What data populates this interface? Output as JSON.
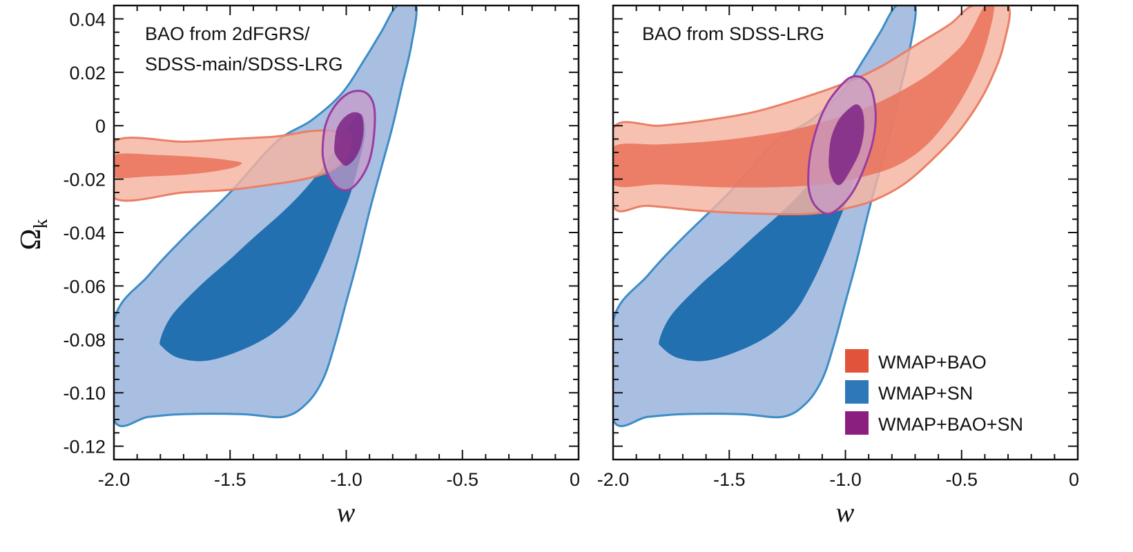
{
  "chart_data": [
    {
      "type": "contour",
      "panel": "left",
      "annotation": [
        "BAO from 2dFGRS/",
        "SDSS-main/SDSS-LRG"
      ],
      "xlabel": "w",
      "ylabel": "Ω",
      "ylabel_subscript": "k",
      "xlim": [
        -2.0,
        0
      ],
      "ylim": [
        -0.125,
        0.045
      ],
      "x_ticks": [
        "-2.0",
        "-1.5",
        "-1.0",
        "-0.5",
        "0"
      ],
      "y_ticks": [
        "0.04",
        "0.02",
        "0",
        "-0.02",
        "-0.04",
        "-0.06",
        "-0.08",
        "-0.10",
        "-0.12"
      ],
      "y_tick_values": [
        0.04,
        0.02,
        0,
        -0.02,
        -0.04,
        -0.06,
        -0.08,
        -0.1,
        -0.12
      ],
      "x_tick_values": [
        -2.0,
        -1.5,
        -1.0,
        -0.5,
        0
      ],
      "regions": [
        {
          "name": "WMAP+SN 95%",
          "series": "WMAP+SN",
          "level": "outer",
          "points": [
            [
              -2.0,
              -0.073
            ],
            [
              -1.85,
              -0.056
            ],
            [
              -1.7,
              -0.042
            ],
            [
              -1.5,
              -0.025
            ],
            [
              -1.3,
              -0.006
            ],
            [
              -1.15,
              0.002
            ],
            [
              -1.02,
              0.012
            ],
            [
              -0.92,
              0.025
            ],
            [
              -0.85,
              0.035
            ],
            [
              -0.78,
              0.045
            ],
            [
              -0.7,
              0.045
            ],
            [
              -0.72,
              0.03
            ],
            [
              -0.76,
              0.015
            ],
            [
              -0.8,
              0.0
            ],
            [
              -0.85,
              -0.016
            ],
            [
              -0.9,
              -0.032
            ],
            [
              -0.95,
              -0.05
            ],
            [
              -1.0,
              -0.066
            ],
            [
              -1.05,
              -0.082
            ],
            [
              -1.1,
              -0.095
            ],
            [
              -1.17,
              -0.104
            ],
            [
              -1.27,
              -0.109
            ],
            [
              -1.45,
              -0.108
            ],
            [
              -1.7,
              -0.108
            ],
            [
              -1.85,
              -0.109
            ],
            [
              -2.0,
              -0.11
            ]
          ]
        },
        {
          "name": "WMAP+SN 68%",
          "series": "WMAP+SN",
          "level": "inner",
          "points": [
            [
              -1.8,
              -0.08
            ],
            [
              -1.75,
              -0.071
            ],
            [
              -1.63,
              -0.06
            ],
            [
              -1.5,
              -0.05
            ],
            [
              -1.4,
              -0.042
            ],
            [
              -1.27,
              -0.032
            ],
            [
              -1.17,
              -0.023
            ],
            [
              -1.08,
              -0.013
            ],
            [
              -1.01,
              -0.003
            ],
            [
              -0.96,
              0.003
            ],
            [
              -0.93,
              0.004
            ],
            [
              -0.92,
              -0.003
            ],
            [
              -0.94,
              -0.012
            ],
            [
              -0.98,
              -0.025
            ],
            [
              -1.03,
              -0.036
            ],
            [
              -1.09,
              -0.049
            ],
            [
              -1.15,
              -0.06
            ],
            [
              -1.22,
              -0.07
            ],
            [
              -1.32,
              -0.078
            ],
            [
              -1.45,
              -0.084
            ],
            [
              -1.6,
              -0.088
            ],
            [
              -1.72,
              -0.087
            ],
            [
              -1.79,
              -0.083
            ]
          ]
        },
        {
          "name": "WMAP+BAO 95%",
          "series": "WMAP+BAO",
          "level": "outer",
          "points": [
            [
              -2.0,
              -0.006
            ],
            [
              -1.7,
              -0.006
            ],
            [
              -1.5,
              -0.005
            ],
            [
              -1.3,
              -0.004
            ],
            [
              -1.15,
              -0.002
            ],
            [
              -1.05,
              -0.002
            ],
            [
              -0.98,
              -0.004
            ],
            [
              -1.0,
              -0.012
            ],
            [
              -1.07,
              -0.017
            ],
            [
              -1.18,
              -0.02
            ],
            [
              -1.32,
              -0.022
            ],
            [
              -1.5,
              -0.024
            ],
            [
              -1.7,
              -0.025
            ],
            [
              -2.0,
              -0.027
            ]
          ]
        },
        {
          "name": "WMAP+BAO 68%",
          "series": "WMAP+BAO",
          "level": "inner",
          "points": [
            [
              -2.0,
              -0.011
            ],
            [
              -1.8,
              -0.011
            ],
            [
              -1.6,
              -0.012
            ],
            [
              -1.5,
              -0.013
            ],
            [
              -1.45,
              -0.014
            ],
            [
              -1.5,
              -0.016
            ],
            [
              -1.65,
              -0.018
            ],
            [
              -1.85,
              -0.019
            ],
            [
              -2.0,
              -0.019
            ]
          ]
        },
        {
          "name": "WMAP+BAO+SN 95%",
          "series": "WMAP+BAO+SN",
          "level": "outer",
          "points": [
            [
              -1.1,
              -0.006
            ],
            [
              -1.09,
              0.0
            ],
            [
              -1.06,
              0.006
            ],
            [
              -1.01,
              0.011
            ],
            [
              -0.96,
              0.013
            ],
            [
              -0.91,
              0.012
            ],
            [
              -0.88,
              0.007
            ],
            [
              -0.88,
              -0.003
            ],
            [
              -0.9,
              -0.013
            ],
            [
              -0.94,
              -0.02
            ],
            [
              -0.99,
              -0.024
            ],
            [
              -1.04,
              -0.023
            ],
            [
              -1.08,
              -0.018
            ],
            [
              -1.1,
              -0.012
            ]
          ]
        },
        {
          "name": "WMAP+BAO+SN 68%",
          "series": "WMAP+BAO+SN",
          "level": "inner",
          "points": [
            [
              -1.05,
              -0.006
            ],
            [
              -1.04,
              -0.001
            ],
            [
              -1.01,
              0.003
            ],
            [
              -0.97,
              0.005
            ],
            [
              -0.935,
              0.004
            ],
            [
              -0.925,
              -0.001
            ],
            [
              -0.935,
              -0.007
            ],
            [
              -0.96,
              -0.012
            ],
            [
              -1.0,
              -0.015
            ],
            [
              -1.03,
              -0.013
            ],
            [
              -1.05,
              -0.01
            ]
          ]
        }
      ]
    },
    {
      "type": "contour",
      "panel": "right",
      "annotation": [
        "BAO from SDSS-LRG"
      ],
      "xlabel": "w",
      "xlim": [
        -2.0,
        0
      ],
      "ylim": [
        -0.125,
        0.045
      ],
      "x_ticks": [
        "-2.0",
        "-1.5",
        "-1.0",
        "-0.5",
        "0"
      ],
      "x_tick_values": [
        -2.0,
        -1.5,
        -1.0,
        -0.5,
        0
      ],
      "y_tick_values": [
        0.04,
        0.02,
        0,
        -0.02,
        -0.04,
        -0.06,
        -0.08,
        -0.1,
        -0.12
      ],
      "regions": [
        {
          "name": "WMAP+SN 95%",
          "series": "WMAP+SN",
          "level": "outer",
          "points": [
            [
              -2.0,
              -0.073
            ],
            [
              -1.85,
              -0.056
            ],
            [
              -1.7,
              -0.042
            ],
            [
              -1.5,
              -0.025
            ],
            [
              -1.3,
              -0.006
            ],
            [
              -1.15,
              0.002
            ],
            [
              -1.02,
              0.012
            ],
            [
              -0.92,
              0.025
            ],
            [
              -0.85,
              0.035
            ],
            [
              -0.78,
              0.045
            ],
            [
              -0.7,
              0.045
            ],
            [
              -0.72,
              0.03
            ],
            [
              -0.76,
              0.015
            ],
            [
              -0.8,
              0.0
            ],
            [
              -0.85,
              -0.016
            ],
            [
              -0.9,
              -0.032
            ],
            [
              -0.95,
              -0.05
            ],
            [
              -1.0,
              -0.066
            ],
            [
              -1.05,
              -0.082
            ],
            [
              -1.1,
              -0.095
            ],
            [
              -1.17,
              -0.104
            ],
            [
              -1.27,
              -0.109
            ],
            [
              -1.45,
              -0.108
            ],
            [
              -1.7,
              -0.108
            ],
            [
              -1.85,
              -0.109
            ],
            [
              -2.0,
              -0.11
            ]
          ]
        },
        {
          "name": "WMAP+SN 68%",
          "series": "WMAP+SN",
          "level": "inner",
          "points": [
            [
              -1.8,
              -0.08
            ],
            [
              -1.75,
              -0.071
            ],
            [
              -1.63,
              -0.06
            ],
            [
              -1.5,
              -0.05
            ],
            [
              -1.4,
              -0.042
            ],
            [
              -1.27,
              -0.032
            ],
            [
              -1.17,
              -0.023
            ],
            [
              -1.08,
              -0.013
            ],
            [
              -1.01,
              -0.003
            ],
            [
              -0.96,
              0.003
            ],
            [
              -0.93,
              0.004
            ],
            [
              -0.92,
              -0.003
            ],
            [
              -0.94,
              -0.012
            ],
            [
              -0.98,
              -0.025
            ],
            [
              -1.03,
              -0.036
            ],
            [
              -1.09,
              -0.049
            ],
            [
              -1.15,
              -0.06
            ],
            [
              -1.22,
              -0.07
            ],
            [
              -1.32,
              -0.078
            ],
            [
              -1.45,
              -0.084
            ],
            [
              -1.6,
              -0.088
            ],
            [
              -1.72,
              -0.087
            ],
            [
              -1.79,
              -0.083
            ]
          ]
        },
        {
          "name": "WMAP+BAO 95%",
          "series": "WMAP+BAO",
          "level": "outer",
          "points": [
            [
              -2.0,
              -0.001
            ],
            [
              -1.8,
              0.0
            ],
            [
              -1.6,
              0.002
            ],
            [
              -1.4,
              0.005
            ],
            [
              -1.2,
              0.01
            ],
            [
              -1.0,
              0.016
            ],
            [
              -0.85,
              0.022
            ],
            [
              -0.7,
              0.03
            ],
            [
              -0.55,
              0.038
            ],
            [
              -0.45,
              0.045
            ],
            [
              -0.3,
              0.045
            ],
            [
              -0.32,
              0.03
            ],
            [
              -0.37,
              0.018
            ],
            [
              -0.43,
              0.008
            ],
            [
              -0.52,
              -0.003
            ],
            [
              -0.63,
              -0.013
            ],
            [
              -0.75,
              -0.022
            ],
            [
              -0.88,
              -0.028
            ],
            [
              -1.0,
              -0.031
            ],
            [
              -1.15,
              -0.033
            ],
            [
              -1.35,
              -0.033
            ],
            [
              -1.6,
              -0.032
            ],
            [
              -1.85,
              -0.03
            ],
            [
              -2.0,
              -0.03
            ]
          ]
        },
        {
          "name": "WMAP+BAO 68%",
          "series": "WMAP+BAO",
          "level": "inner",
          "points": [
            [
              -2.0,
              -0.008
            ],
            [
              -1.8,
              -0.007
            ],
            [
              -1.6,
              -0.006
            ],
            [
              -1.4,
              -0.004
            ],
            [
              -1.2,
              -0.001
            ],
            [
              -1.0,
              0.004
            ],
            [
              -0.85,
              0.009
            ],
            [
              -0.7,
              0.016
            ],
            [
              -0.6,
              0.022
            ],
            [
              -0.5,
              0.03
            ],
            [
              -0.45,
              0.037
            ],
            [
              -0.4,
              0.045
            ],
            [
              -0.36,
              0.045
            ],
            [
              -0.38,
              0.035
            ],
            [
              -0.42,
              0.024
            ],
            [
              -0.48,
              0.013
            ],
            [
              -0.56,
              0.002
            ],
            [
              -0.66,
              -0.008
            ],
            [
              -0.78,
              -0.015
            ],
            [
              -0.92,
              -0.019
            ],
            [
              -1.1,
              -0.022
            ],
            [
              -1.3,
              -0.023
            ],
            [
              -1.55,
              -0.023
            ],
            [
              -1.8,
              -0.022
            ],
            [
              -2.0,
              -0.022
            ]
          ]
        },
        {
          "name": "WMAP+BAO+SN 95%",
          "series": "WMAP+BAO+SN",
          "level": "outer",
          "points": [
            [
              -1.16,
              -0.019
            ],
            [
              -1.15,
              -0.01
            ],
            [
              -1.12,
              -0.0
            ],
            [
              -1.08,
              0.008
            ],
            [
              -1.03,
              0.014
            ],
            [
              -0.98,
              0.018
            ],
            [
              -0.93,
              0.018
            ],
            [
              -0.89,
              0.014
            ],
            [
              -0.87,
              0.005
            ],
            [
              -0.88,
              -0.005
            ],
            [
              -0.92,
              -0.016
            ],
            [
              -0.97,
              -0.025
            ],
            [
              -1.03,
              -0.031
            ],
            [
              -1.08,
              -0.033
            ],
            [
              -1.13,
              -0.03
            ],
            [
              -1.155,
              -0.025
            ]
          ]
        },
        {
          "name": "WMAP+BAO+SN 68%",
          "series": "WMAP+BAO+SN",
          "level": "inner",
          "points": [
            [
              -1.07,
              -0.01
            ],
            [
              -1.06,
              -0.004
            ],
            [
              -1.03,
              0.002
            ],
            [
              -0.99,
              0.006
            ],
            [
              -0.95,
              0.008
            ],
            [
              -0.925,
              0.005
            ],
            [
              -0.92,
              -0.002
            ],
            [
              -0.94,
              -0.01
            ],
            [
              -0.98,
              -0.017
            ],
            [
              -1.02,
              -0.022
            ],
            [
              -1.05,
              -0.021
            ],
            [
              -1.07,
              -0.016
            ]
          ]
        }
      ]
    }
  ],
  "legend": {
    "items": [
      {
        "label": "WMAP+BAO",
        "color": "#e2533b"
      },
      {
        "label": "WMAP+SN",
        "color": "#2e77b8"
      },
      {
        "label": "WMAP+BAO+SN",
        "color": "#8a1f80"
      }
    ]
  },
  "styles": {
    "WMAP+SN": {
      "outer_fill": "#a8bfe2",
      "inner_fill": "#2270b0",
      "stroke": "#3d8cc6",
      "outer_opacity": 1.0,
      "inner_opacity": 1.0
    },
    "WMAP+BAO": {
      "outer_fill": "#f5b3a0",
      "inner_fill": "#e96f58",
      "stroke": "#ea7f66",
      "outer_opacity": 0.82,
      "inner_opacity": 0.82
    },
    "WMAP+BAO+SN": {
      "outer_fill": "#c69ac8",
      "inner_fill": "#7d2585",
      "stroke": "#9a3ba0",
      "outer_opacity": 0.72,
      "inner_opacity": 0.85
    }
  }
}
